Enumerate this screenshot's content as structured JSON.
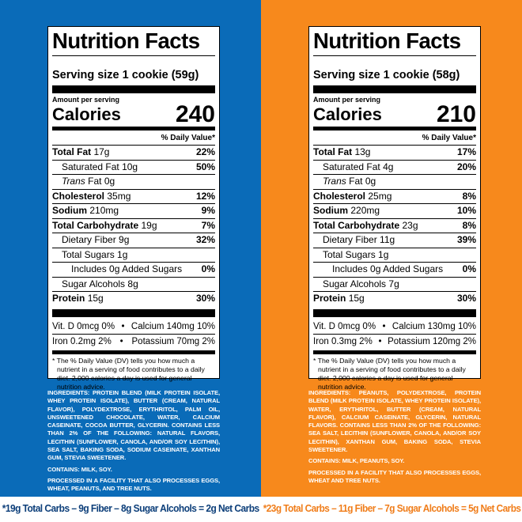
{
  "colors": {
    "left_panel": "#0a6bb8",
    "right_panel": "#f7891c"
  },
  "labels": [
    {
      "title": "Nutrition Facts",
      "serving": "Serving size 1 cookie (59g)",
      "amount_per_serving": "Amount per serving",
      "calories_label": "Calories",
      "calories": "240",
      "dv_header": "% Daily Value*",
      "rows": [
        {
          "name": "Total Fat",
          "amount": "17g",
          "dv": "22%",
          "bold": true,
          "indent": 0
        },
        {
          "name": "Saturated Fat",
          "amount": "10g",
          "dv": "50%",
          "bold": false,
          "indent": 1
        },
        {
          "name": "Trans",
          "amount": "Fat 0g",
          "dv": "",
          "bold": false,
          "indent": 1,
          "italic": true
        },
        {
          "name": "Cholesterol",
          "amount": "35mg",
          "dv": "12%",
          "bold": true,
          "indent": 0
        },
        {
          "name": "Sodium",
          "amount": "210mg",
          "dv": "9%",
          "bold": true,
          "indent": 0
        },
        {
          "name": "Total Carbohydrate",
          "amount": "19g",
          "dv": "7%",
          "bold": true,
          "indent": 0
        },
        {
          "name": "Dietary Fiber",
          "amount": "9g",
          "dv": "32%",
          "bold": false,
          "indent": 1
        },
        {
          "name": "Total Sugars",
          "amount": "1g",
          "dv": "",
          "bold": false,
          "indent": 1
        },
        {
          "name": "Includes",
          "amount": "0g Added Sugars",
          "dv": "0%",
          "bold": false,
          "indent": 2
        },
        {
          "name": "Sugar Alcohols",
          "amount": "8g",
          "dv": "",
          "bold": false,
          "indent": 1
        },
        {
          "name": "Protein",
          "amount": "15g",
          "dv": "30%",
          "bold": true,
          "indent": 0
        }
      ],
      "vitamins": [
        [
          "Vit. D 0mcg 0%",
          "•",
          "Calcium 140mg 10%"
        ],
        [
          "Iron 0.2mg 2%",
          "•",
          "Potassium 70mg 2%"
        ]
      ],
      "footnote": "* The % Daily Value (DV) tells you how much a nutrient in a serving of food contributes to a daily diet. 2,000 calories a day is used for general nutrition advice.",
      "ingredients": "INGREDIENTS: PROTEIN BLEND (MILK PROTEIN ISOLATE, WHEY PROTEIN ISOLATE), BUTTER (CREAM, NATURAL FLAVOR), POLYDEXTROSE, ERYTHRITOL, PALM OIL, UNSWEETENED CHOCOLATE, WATER, CALCIUM CASEINATE, COCOA BUTTER, GLYCERIN. CONTAINS LESS THAN 2% OF THE FOLLOWING: NATURAL FLAVORS, LECITHIN (SUNFLOWER, CANOLA, AND/OR SOY LECITHIN), SEA SALT, BAKING SODA, SODIUM CASEINATE, XANTHAN GUM, STEVIA SWEETENER.",
      "contains": "CONTAINS: MILK, SOY.",
      "facility": "PROCESSED IN A FACILITY THAT ALSO PROCESSES EGGS, WHEAT, PEANUTS, AND TREE NUTS.",
      "net_carbs": "*19g Total Carbs – 9g Fiber – 8g Sugar Alcohols = 2g Net Carbs"
    },
    {
      "title": "Nutrition Facts",
      "serving": "Serving size 1 cookie (58g)",
      "amount_per_serving": "Amount per serving",
      "calories_label": "Calories",
      "calories": "210",
      "dv_header": "% Daily Value*",
      "rows": [
        {
          "name": "Total Fat",
          "amount": "13g",
          "dv": "17%",
          "bold": true,
          "indent": 0
        },
        {
          "name": "Saturated Fat",
          "amount": "4g",
          "dv": "20%",
          "bold": false,
          "indent": 1
        },
        {
          "name": "Trans",
          "amount": "Fat 0g",
          "dv": "",
          "bold": false,
          "indent": 1,
          "italic": true
        },
        {
          "name": "Cholesterol",
          "amount": "25mg",
          "dv": "8%",
          "bold": true,
          "indent": 0
        },
        {
          "name": "Sodium",
          "amount": "220mg",
          "dv": "10%",
          "bold": true,
          "indent": 0
        },
        {
          "name": "Total Carbohydrate",
          "amount": "23g",
          "dv": "8%",
          "bold": true,
          "indent": 0
        },
        {
          "name": "Dietary Fiber",
          "amount": "11g",
          "dv": "39%",
          "bold": false,
          "indent": 1
        },
        {
          "name": "Total Sugars",
          "amount": "1g",
          "dv": "",
          "bold": false,
          "indent": 1
        },
        {
          "name": "Includes",
          "amount": "0g Added Sugars",
          "dv": "0%",
          "bold": false,
          "indent": 2
        },
        {
          "name": "Sugar Alcohols",
          "amount": "7g",
          "dv": "",
          "bold": false,
          "indent": 1
        },
        {
          "name": "Protein",
          "amount": "15g",
          "dv": "30%",
          "bold": true,
          "indent": 0
        }
      ],
      "vitamins": [
        [
          "Vit. D 0mcg 0%",
          "•",
          "Calcium 130mg 10%"
        ],
        [
          "Iron 0.3mg 2%",
          "•",
          "Potassium 120mg 2%"
        ]
      ],
      "footnote": "* The % Daily Value (DV) tells you how much a nutrient in a serving of food contributes to a daily diet. 2,000 calories a day is used for general nutrition advice.",
      "ingredients": "INGREDIENTS: PEANUTS, POLYDEXTROSE, PROTEIN BLEND (MILK PROTEIN ISOLATE, WHEY PROTEIN ISOLATE), WATER, ERYTHRITOL, BUTTER (CREAM, NATURAL FLAVOR), CALCIUM CASEINATE, GLYCERIN, NATURAL FLAVORS. CONTAINS LESS THAN 2% OF THE FOLLOWING: SEA SALT, LECITHIN (SUNFLOWER, CANOLA, AND/OR SOY LECITHIN), XANTHAN GUM, BAKING SODA, STEVIA SWEETENER.",
      "contains": "CONTAINS: MILK, PEANUTS, SOY.",
      "facility": "PROCESSED IN A FACILITY THAT ALSO PROCESSES EGGS, WHEAT AND TREE NUTS.",
      "net_carbs": "*23g Total Carbs – 11g Fiber – 7g Sugar Alcohols = 5g Net Carbs"
    }
  ]
}
